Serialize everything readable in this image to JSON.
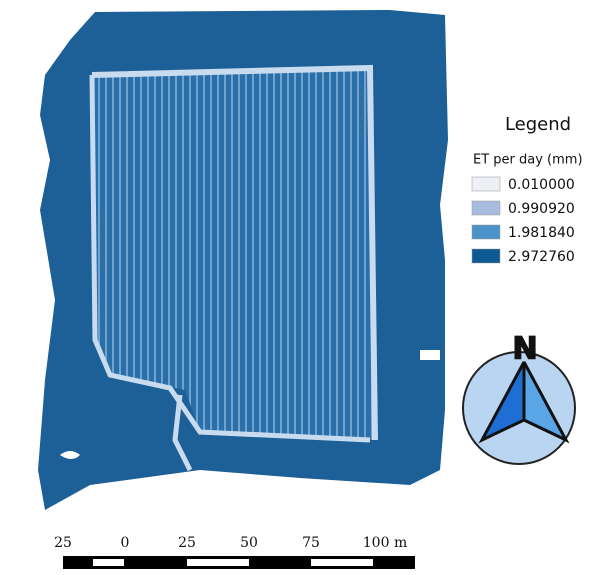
{
  "legend": {
    "title": "Legend",
    "subtitle": "ET per day (mm)",
    "entries": [
      {
        "label": "0.010000",
        "color": "#eef0f6"
      },
      {
        "label": "0.990920",
        "color": "#a8bddd"
      },
      {
        "label": "1.981840",
        "color": "#4a92c8"
      },
      {
        "label": "2.972760",
        "color": "#0d5a92"
      }
    ]
  },
  "north_arrow": {
    "label": "N"
  },
  "scale_bar": {
    "labels": [
      "25",
      "0",
      "25",
      "50",
      "75",
      "100 m"
    ]
  }
}
